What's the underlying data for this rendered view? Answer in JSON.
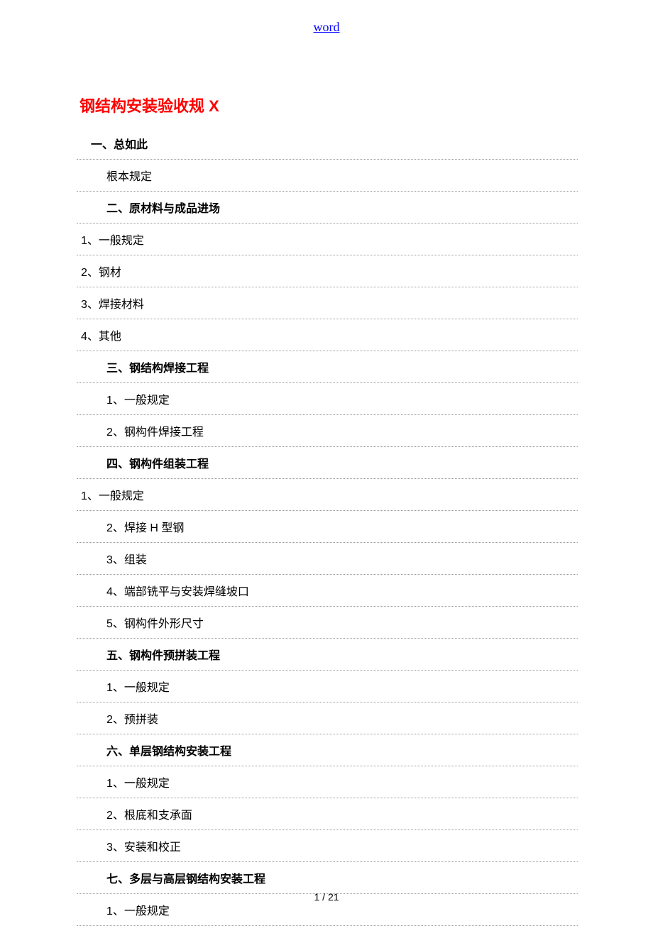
{
  "header": {
    "link_text": "word"
  },
  "title": "钢结构安装验收规 X",
  "toc": [
    {
      "text": "一、总如此",
      "style": "indent-0"
    },
    {
      "text": "根本规定",
      "style": "indent-1"
    },
    {
      "text": "二、原材料与成品进场",
      "style": "indent-1-bold"
    },
    {
      "text": "1、一般规定",
      "style": "indent-left"
    },
    {
      "text": "2、钢材",
      "style": "indent-left"
    },
    {
      "text": "3、焊接材料",
      "style": "indent-left"
    },
    {
      "text": "4、其他",
      "style": "indent-left"
    },
    {
      "text": "三、钢结构焊接工程",
      "style": "indent-1-bold"
    },
    {
      "text": "1、一般规定",
      "style": "indent-1"
    },
    {
      "text": "2、钢构件焊接工程",
      "style": "indent-1"
    },
    {
      "text": "四、钢构件组装工程",
      "style": "indent-1-bold"
    },
    {
      "text": "1、一般规定",
      "style": "indent-left"
    },
    {
      "text": "2、焊接 H 型钢",
      "style": "indent-1"
    },
    {
      "text": "3、组装",
      "style": "indent-1"
    },
    {
      "text": "4、端部铣平与安装焊缝坡口",
      "style": "indent-1"
    },
    {
      "text": "5、钢构件外形尺寸",
      "style": "indent-1"
    },
    {
      "text": "五、钢构件预拼装工程",
      "style": "indent-1-bold"
    },
    {
      "text": "1、一般规定",
      "style": "indent-1"
    },
    {
      "text": "2、预拼装",
      "style": "indent-1"
    },
    {
      "text": "六、单层钢结构安装工程",
      "style": "indent-1-bold"
    },
    {
      "text": "1、一般规定",
      "style": "indent-1"
    },
    {
      "text": "2、根底和支承面",
      "style": "indent-1"
    },
    {
      "text": "3、安装和校正",
      "style": "indent-1"
    },
    {
      "text": "七、多层与高层钢结构安装工程",
      "style": "indent-1-bold"
    },
    {
      "text": "1、一般规定",
      "style": "indent-1"
    }
  ],
  "footer": {
    "page_current": "1",
    "page_separator": " / ",
    "page_total": "21"
  }
}
